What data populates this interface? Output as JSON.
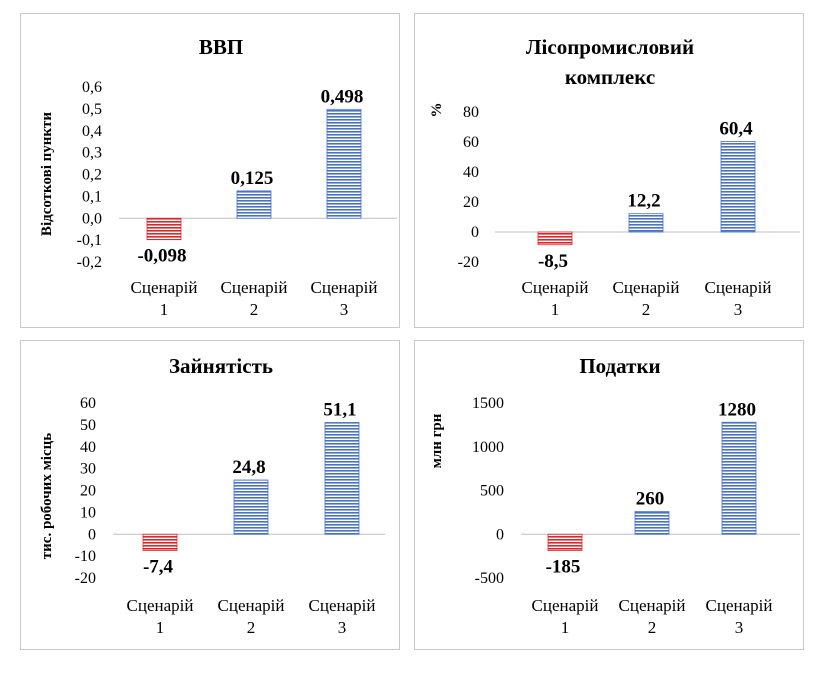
{
  "colors": {
    "negative": "#d9272c",
    "positive": "#4a72c4",
    "zero_line": "#bfbfbf"
  },
  "chart_data": [
    {
      "type": "bar",
      "title": "ВВП",
      "ylabel": "Відсоткові пункти",
      "categories": [
        [
          "Сценарій",
          "1"
        ],
        [
          "Сценарій",
          "2"
        ],
        [
          "Сценарій",
          "3"
        ]
      ],
      "values": [
        -0.098,
        0.125,
        0.498
      ],
      "value_labels": [
        "-0,098",
        "0,125",
        "0,498"
      ],
      "yticks": [
        0.6,
        0.5,
        0.4,
        0.3,
        0.2,
        0.1,
        0.0,
        -0.1,
        -0.2
      ],
      "ytick_labels": [
        "0,6",
        "0,5",
        "0,4",
        "0,3",
        "0,2",
        "0,1",
        "0,0",
        "-0,1",
        "-0,2"
      ],
      "ylim": [
        -0.2,
        0.6
      ]
    },
    {
      "type": "bar",
      "title": [
        "Лісопромисловий",
        "комплекс"
      ],
      "ylabel": "%",
      "categories": [
        [
          "Сценарій",
          "1"
        ],
        [
          "Сценарій",
          "2"
        ],
        [
          "Сценарій",
          "3"
        ]
      ],
      "values": [
        -8.5,
        12.2,
        60.4
      ],
      "value_labels": [
        "-8,5",
        "12,2",
        "60,4"
      ],
      "yticks": [
        80,
        60,
        40,
        20,
        0,
        -20
      ],
      "ytick_labels": [
        "80",
        "60",
        "40",
        "20",
        "0",
        "-20"
      ],
      "ylim": [
        -20,
        80
      ]
    },
    {
      "type": "bar",
      "title": "Зайнятість",
      "ylabel": "тис. робочих місць",
      "categories": [
        [
          "Сценарій",
          "1"
        ],
        [
          "Сценарій",
          "2"
        ],
        [
          "Сценарій",
          "3"
        ]
      ],
      "values": [
        -7.4,
        24.8,
        51.1
      ],
      "value_labels": [
        "-7,4",
        "24,8",
        "51,1"
      ],
      "yticks": [
        60,
        50,
        40,
        30,
        20,
        10,
        0,
        -10,
        -20
      ],
      "ytick_labels": [
        "60",
        "50",
        "40",
        "30",
        "20",
        "10",
        "0",
        "-10",
        "-20"
      ],
      "ylim": [
        -20,
        60
      ]
    },
    {
      "type": "bar",
      "title": "Податки",
      "ylabel": "млн грн",
      "categories": [
        [
          "Сценарій",
          "1"
        ],
        [
          "Сценарій",
          "2"
        ],
        [
          "Сценарій",
          "3"
        ]
      ],
      "values": [
        -185,
        260,
        1280
      ],
      "value_labels": [
        "-185",
        "260",
        "1280"
      ],
      "yticks": [
        1500,
        1000,
        500,
        0,
        -500
      ],
      "ytick_labels": [
        "1500",
        "1000",
        "500",
        "0",
        "-500"
      ],
      "ylim": [
        -500,
        1500
      ]
    }
  ]
}
